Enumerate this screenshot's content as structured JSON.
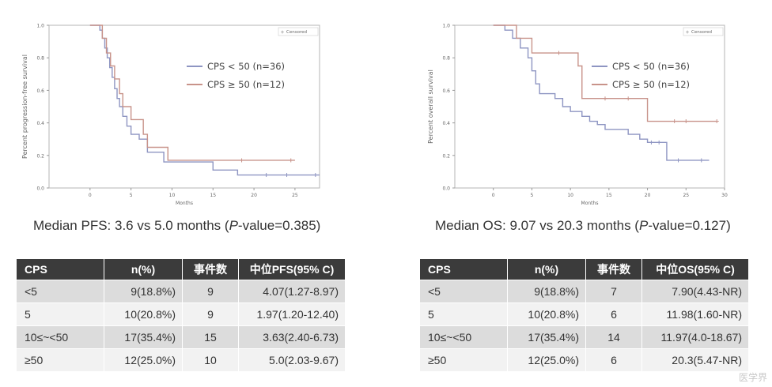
{
  "panels": [
    {
      "id": "left",
      "chart_data": {
        "type": "line",
        "subtype": "kaplan-meier step curves",
        "ylabel": "Percent progression-free survival",
        "xlabel": "Months",
        "xlim": [
          -5,
          28
        ],
        "ylim": [
          0,
          1
        ],
        "xticks": [
          0,
          5,
          10,
          15,
          20,
          25
        ],
        "yticks": [
          "0.0",
          "0.2",
          "0.4",
          "0.6",
          "0.8",
          "1.0"
        ],
        "legend_position": "top-right",
        "censored_label": "Censored",
        "series": [
          {
            "name": "CPS < 50 (n=36)",
            "color": "#8e95c2",
            "steps": [
              [
                0,
                1.0
              ],
              [
                1.2,
                0.97
              ],
              [
                1.5,
                0.92
              ],
              [
                1.8,
                0.86
              ],
              [
                2.1,
                0.8
              ],
              [
                2.4,
                0.74
              ],
              [
                2.7,
                0.68
              ],
              [
                3.0,
                0.61
              ],
              [
                3.3,
                0.55
              ],
              [
                3.6,
                0.5
              ],
              [
                4.0,
                0.44
              ],
              [
                4.5,
                0.38
              ],
              [
                5.0,
                0.33
              ],
              [
                6.0,
                0.3
              ],
              [
                7.0,
                0.22
              ],
              [
                9.0,
                0.16
              ],
              [
                15.0,
                0.11
              ],
              [
                18.0,
                0.08
              ],
              [
                28.0,
                0.08
              ]
            ],
            "censored": [
              [
                21.5,
                0.08
              ],
              [
                24.0,
                0.08
              ],
              [
                27.5,
                0.08
              ]
            ]
          },
          {
            "name": "CPS ≥ 50 (n=12)",
            "color": "#c8938a",
            "steps": [
              [
                0,
                1.0
              ],
              [
                1.5,
                0.92
              ],
              [
                2.0,
                0.83
              ],
              [
                2.5,
                0.75
              ],
              [
                3.0,
                0.67
              ],
              [
                3.6,
                0.58
              ],
              [
                4.0,
                0.5
              ],
              [
                5.0,
                0.42
              ],
              [
                6.5,
                0.33
              ],
              [
                7.0,
                0.25
              ],
              [
                9.5,
                0.17
              ],
              [
                25.0,
                0.17
              ]
            ],
            "censored": [
              [
                18.5,
                0.17
              ],
              [
                24.5,
                0.17
              ]
            ]
          }
        ]
      },
      "caption": {
        "prefix": "Median PFS: 3.6 vs 5.0 months (",
        "pvalue_italic": "P",
        "suffix": "-value=0.385)"
      },
      "table": {
        "headers": [
          "CPS",
          "n(%)",
          "事件数",
          "中位PFS(95% C)"
        ],
        "rows": [
          [
            "<5",
            "9(18.8%)",
            "9",
            "4.07(1.27-8.97)"
          ],
          [
            "5",
            "10(20.8%)",
            "9",
            "1.97(1.20-12.40)"
          ],
          [
            "10≤~<50",
            "17(35.4%)",
            "15",
            "3.63(2.40-6.73)"
          ],
          [
            "≥50",
            "12(25.0%)",
            "10",
            "5.0(2.03-9.67)"
          ]
        ]
      }
    },
    {
      "id": "right",
      "chart_data": {
        "type": "line",
        "subtype": "kaplan-meier step curves",
        "ylabel": "Percent overall survival",
        "xlabel": "Months",
        "xlim": [
          -5,
          30
        ],
        "ylim": [
          0,
          1
        ],
        "xticks": [
          0,
          5,
          10,
          15,
          20,
          25,
          30
        ],
        "yticks": [
          "0.0",
          "0.2",
          "0.4",
          "0.6",
          "0.8",
          "1.0"
        ],
        "legend_position": "top-right",
        "censored_label": "Censored",
        "series": [
          {
            "name": "CPS < 50 (n=36)",
            "color": "#8e95c2",
            "steps": [
              [
                0,
                1.0
              ],
              [
                1.5,
                0.97
              ],
              [
                2.5,
                0.92
              ],
              [
                3.5,
                0.86
              ],
              [
                4.5,
                0.8
              ],
              [
                5.0,
                0.72
              ],
              [
                5.5,
                0.64
              ],
              [
                6.0,
                0.58
              ],
              [
                8.0,
                0.55
              ],
              [
                9.0,
                0.5
              ],
              [
                10.0,
                0.47
              ],
              [
                11.5,
                0.44
              ],
              [
                12.5,
                0.41
              ],
              [
                13.5,
                0.39
              ],
              [
                14.5,
                0.36
              ],
              [
                17.5,
                0.33
              ],
              [
                19.0,
                0.3
              ],
              [
                20.0,
                0.28
              ],
              [
                22.5,
                0.17
              ],
              [
                28.0,
                0.17
              ]
            ],
            "censored": [
              [
                20.5,
                0.28
              ],
              [
                21.5,
                0.28
              ],
              [
                24.0,
                0.17
              ],
              [
                27.0,
                0.17
              ]
            ]
          },
          {
            "name": "CPS ≥ 50 (n=12)",
            "color": "#c8938a",
            "steps": [
              [
                0,
                1.0
              ],
              [
                3.0,
                0.92
              ],
              [
                5.0,
                0.83
              ],
              [
                11.0,
                0.75
              ],
              [
                11.5,
                0.55
              ],
              [
                20.0,
                0.41
              ],
              [
                29.0,
                0.41
              ]
            ],
            "censored": [
              [
                8.5,
                0.83
              ],
              [
                14.5,
                0.55
              ],
              [
                17.5,
                0.55
              ],
              [
                23.5,
                0.41
              ],
              [
                25.0,
                0.41
              ],
              [
                29.0,
                0.41
              ]
            ]
          }
        ]
      },
      "caption": {
        "prefix": "Median OS: 9.07 vs 20.3 months (",
        "pvalue_italic": "P",
        "suffix": "-value=0.127)"
      },
      "table": {
        "headers": [
          "CPS",
          "n(%)",
          "事件数",
          "中位OS(95% C)"
        ],
        "rows": [
          [
            "<5",
            "9(18.8%)",
            "7",
            "7.90(4.43-NR)"
          ],
          [
            "5",
            "10(20.8%)",
            "6",
            "11.98(1.60-NR)"
          ],
          [
            "10≤~<50",
            "17(35.4%)",
            "14",
            "11.97(4.0-18.67)"
          ],
          [
            "≥50",
            "12(25.0%)",
            "6",
            "20.3(5.47-NR)"
          ]
        ]
      }
    }
  ],
  "watermark": "医学界"
}
